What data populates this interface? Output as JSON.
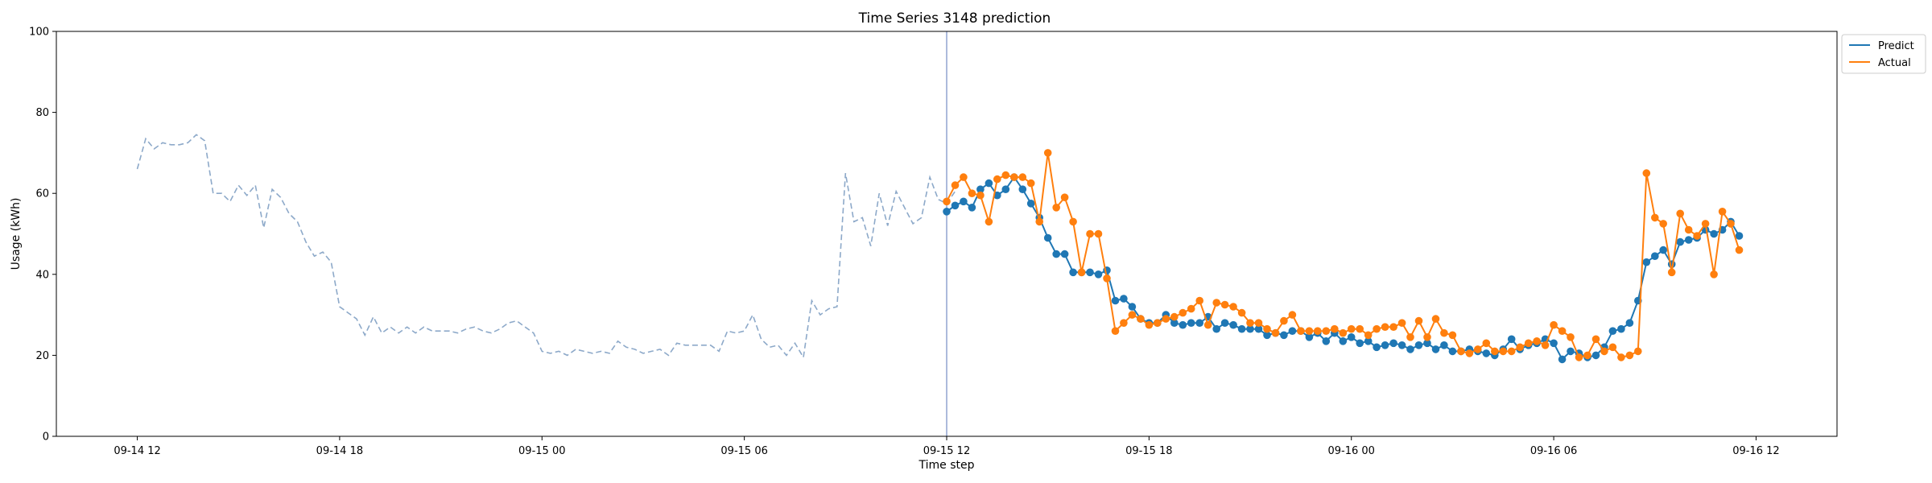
{
  "chart_data": {
    "type": "line",
    "title": "Time Series 3148 prediction",
    "xlabel": "Time step",
    "ylabel": "Usage (kWh)",
    "ylim": [
      0,
      100
    ],
    "yticks": [
      0,
      20,
      40,
      60,
      80,
      100
    ],
    "x_unit": "15-minute steps",
    "x_start": "09-14 12:00",
    "x_end": "09-16 12:00",
    "xticks": [
      {
        "value": "09-14 12",
        "label": "09-14 12"
      },
      {
        "value": "09-14 18",
        "label": "09-14 18"
      },
      {
        "value": "09-15 00",
        "label": "09-15 00"
      },
      {
        "value": "09-15 06",
        "label": "09-15 06"
      },
      {
        "value": "09-15 12",
        "label": "09-15 12"
      },
      {
        "value": "09-15 18",
        "label": "09-15 18"
      },
      {
        "value": "09-16 00",
        "label": "09-16 00"
      },
      {
        "value": "09-16 06",
        "label": "09-16 06"
      },
      {
        "value": "09-16 12",
        "label": "09-16 12"
      }
    ],
    "split_time": "09-15 12:00",
    "legend": {
      "placement": "outside-top-right"
    },
    "colors": {
      "history": "#8da9c9",
      "predict": "#1f77b4",
      "actual": "#ff7f0e",
      "split_line": "#8094c8"
    },
    "history": {
      "start": "09-14 12:00",
      "values": [
        66,
        73.5,
        71,
        72.5,
        72,
        72,
        72.5,
        74.5,
        73,
        60,
        60,
        58,
        62,
        59.5,
        62,
        51.5,
        61,
        59,
        55,
        53,
        48,
        44.5,
        45.5,
        43,
        32,
        30.5,
        29,
        25,
        29.5,
        25.5,
        27,
        25.5,
        27,
        25.5,
        27,
        26,
        26,
        26,
        25.5,
        26.5,
        27,
        26,
        25.5,
        26.5,
        28,
        28.5,
        27,
        25.5,
        21,
        20.5,
        21,
        20,
        21.5,
        21,
        20.5,
        21,
        20.5,
        23.5,
        22,
        21.5,
        20.5,
        21,
        21.5,
        20,
        23,
        22.5,
        22.5,
        22.5,
        22.5,
        21,
        26,
        25.5,
        26,
        30,
        24,
        22,
        22.5,
        20,
        23,
        19.5,
        33.5,
        30,
        31.5,
        32,
        65,
        53,
        54,
        47,
        60,
        52,
        60.5,
        56.5,
        52.5,
        54,
        64,
        58.5,
        57.5,
        60.5
      ]
    },
    "series": [
      {
        "name": "Predict",
        "start": "09-15 12:00",
        "values": [
          55.5,
          57,
          58,
          56.5,
          61,
          62.5,
          59.5,
          61,
          64,
          61,
          57.5,
          54,
          49,
          45,
          45,
          40.5,
          40.5,
          40.5,
          40,
          41,
          33.5,
          34,
          32,
          29,
          28,
          28,
          30,
          28,
          27.5,
          28,
          28,
          29.5,
          26.5,
          28,
          27.5,
          26.5,
          26.5,
          26.5,
          25,
          25.5,
          25,
          26,
          26,
          24.5,
          25.5,
          23.5,
          25.5,
          23.5,
          24.5,
          23,
          23.5,
          22,
          22.5,
          23,
          22.5,
          21.5,
          22.5,
          23,
          21.5,
          22.5,
          21,
          21,
          21.5,
          21,
          20.5,
          20,
          21.5,
          24,
          21.5,
          22.5,
          23,
          24,
          23,
          19,
          21,
          20.5,
          19.5,
          20,
          22,
          26,
          26.5,
          28,
          33.5,
          43,
          44.5,
          46,
          42.5,
          48,
          48.5,
          49,
          51,
          50,
          51,
          53,
          49.5
        ]
      },
      {
        "name": "Actual",
        "start": "09-15 12:00",
        "values": [
          58,
          62,
          64,
          60,
          59.5,
          53,
          63.5,
          64.5,
          64,
          64,
          62.5,
          53,
          70,
          56.5,
          59,
          53,
          40.5,
          50,
          50,
          39,
          26,
          28,
          30,
          29,
          27.5,
          28,
          29,
          29.5,
          30.5,
          31.5,
          33.5,
          27.5,
          33,
          32.5,
          32,
          30.5,
          28,
          28,
          26.5,
          25.5,
          28.5,
          30,
          26,
          26,
          26,
          26,
          26.5,
          25.5,
          26.5,
          26.5,
          25,
          26.5,
          27,
          27,
          28,
          24.5,
          28.5,
          24.5,
          29,
          25.5,
          25,
          21,
          20.5,
          21.5,
          23,
          21,
          21,
          21,
          22,
          23,
          23.5,
          22.5,
          27.5,
          26,
          24.5,
          19.5,
          20,
          24,
          21,
          22,
          19.5,
          20,
          21,
          65,
          54,
          52.5,
          40.5,
          55,
          51,
          49.5,
          52.5,
          40,
          55.5,
          52.5,
          46
        ]
      }
    ]
  }
}
